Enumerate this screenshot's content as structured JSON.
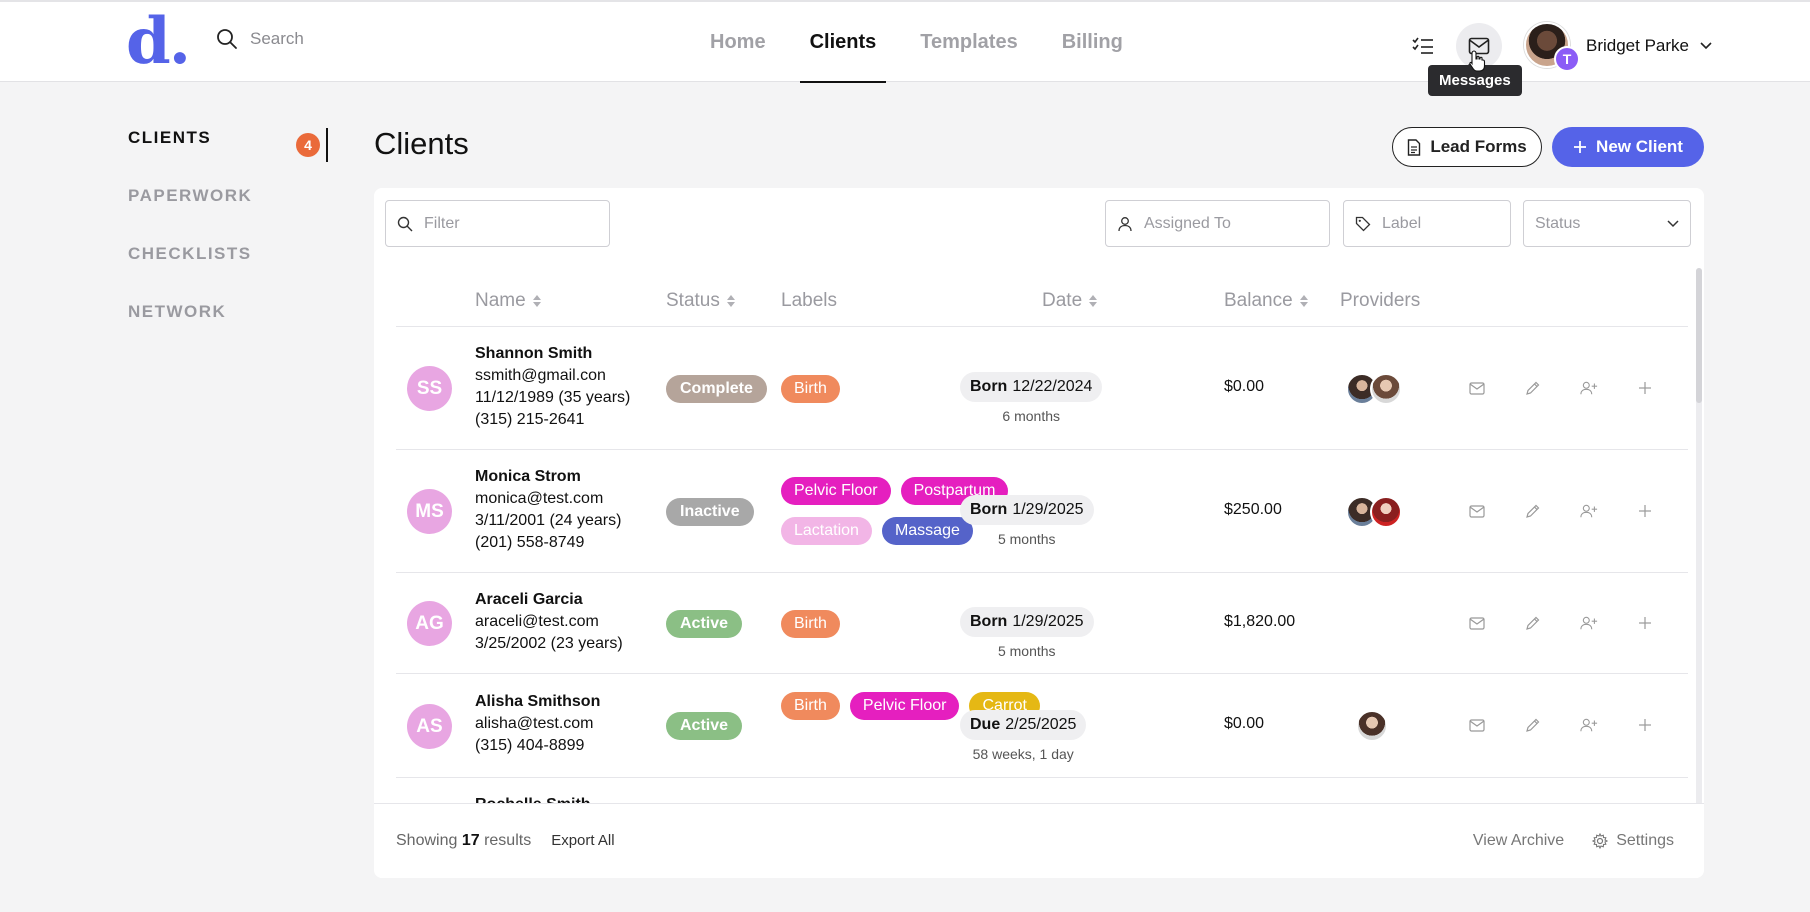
{
  "app": {
    "logo_text": "d."
  },
  "search": {
    "placeholder": "Search"
  },
  "nav": {
    "items": [
      "Home",
      "Clients",
      "Templates",
      "Billing"
    ],
    "active": "Clients"
  },
  "user": {
    "name": "Bridget Parke",
    "badge_initial": "T"
  },
  "tooltip": {
    "text": "Messages"
  },
  "sidebar": {
    "items": [
      "CLIENTS",
      "PAPERWORK",
      "CHECKLISTS",
      "NETWORK"
    ],
    "clients_badge": "4"
  },
  "page": {
    "title": "Clients"
  },
  "buttons": {
    "lead_forms": "Lead Forms",
    "new_client": "New Client"
  },
  "filters": {
    "filter_placeholder": "Filter",
    "assigned_placeholder": "Assigned To",
    "label_placeholder": "Label",
    "status_placeholder": "Status"
  },
  "table": {
    "headers": [
      "Name",
      "Status",
      "Labels",
      "Date",
      "Balance",
      "Providers"
    ],
    "rows": [
      {
        "initials": "SS",
        "name": "Shannon Smith",
        "email": "ssmith@gmail.con",
        "dob": "11/12/1989 (35 years)",
        "phone": "(315) 215-2641",
        "status": "Complete",
        "labels": [
          "Birth"
        ],
        "date_kind": "Born",
        "date": "12/22/2024",
        "date_sub": "6 months",
        "balance": "$0.00",
        "providers": 2
      },
      {
        "initials": "MS",
        "name": "Monica Strom",
        "email": "monica@test.com",
        "dob": "3/11/2001 (24 years)",
        "phone": "(201) 558-8749",
        "status": "Inactive",
        "labels": [
          "Pelvic Floor",
          "Postpartum",
          "Lactation",
          "Massage"
        ],
        "date_kind": "Born",
        "date": "1/29/2025",
        "date_sub": "5 months",
        "balance": "$250.00",
        "providers": 2
      },
      {
        "initials": "AG",
        "name": "Araceli Garcia",
        "email": "araceli@test.com",
        "dob": "3/25/2002 (23 years)",
        "phone": "",
        "status": "Active",
        "labels": [
          "Birth"
        ],
        "date_kind": "Born",
        "date": "1/29/2025",
        "date_sub": "5 months",
        "balance": "$1,820.00",
        "providers": 0
      },
      {
        "initials": "AS",
        "name": "Alisha Smithson",
        "email": "alisha@test.com",
        "dob": "(315) 404-8899",
        "phone": "",
        "status": "Active",
        "labels": [
          "Birth",
          "Pelvic Floor",
          "Carrot"
        ],
        "date_kind": "Due",
        "date": "2/25/2025",
        "date_sub": "58 weeks, 1 day",
        "balance": "$0.00",
        "providers": 1
      }
    ],
    "partial_row_name": "Rochelle Smith"
  },
  "footer": {
    "showing_prefix": "Showing",
    "showing_count": "17",
    "showing_suffix": "results",
    "export_all": "Export All",
    "view_archive": "View Archive",
    "settings": "Settings"
  },
  "colors": {
    "brand": "#5563e8",
    "status_complete": "#b5a49a",
    "status_inactive": "#a8a8a8",
    "status_active": "#8bbf85",
    "label_birth": "#f08a5d",
    "label_pelvic_floor": "#e51fbf",
    "label_postpartum": "#e51fbf",
    "label_lactation": "#f2b5e6",
    "label_massage": "#5563c9",
    "label_carrot": "#e5b814"
  }
}
